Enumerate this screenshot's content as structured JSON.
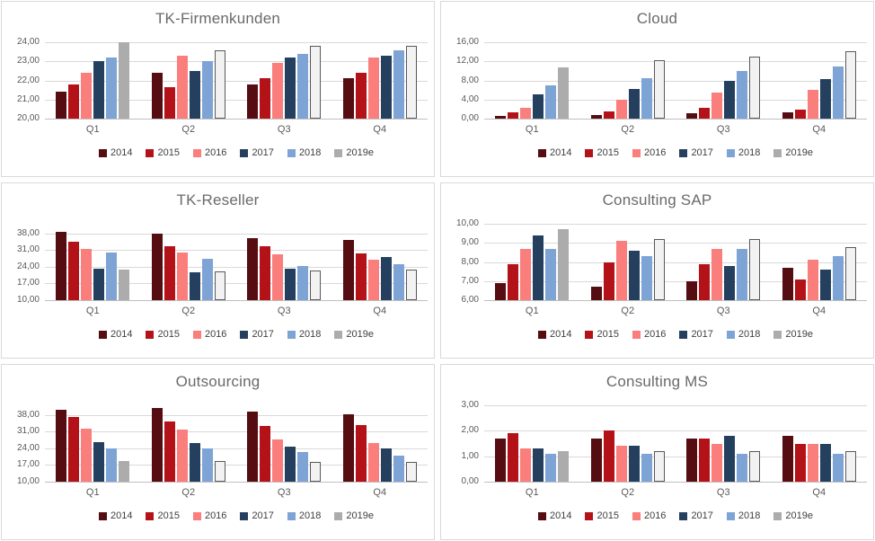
{
  "legend": {
    "entries": [
      "2014",
      "2015",
      "2016",
      "2017",
      "2018",
      "2019e"
    ]
  },
  "colors": {
    "series": {
      "2014": "#560d12",
      "2015": "#b21218",
      "2016": "#f97e7c",
      "2017": "#25405f",
      "2018": "#7ea3d5",
      "2019e": "#acacac"
    },
    "estimate_fill": "#f2f2f2",
    "estimate_border": "#595959",
    "gridline": "#d9d9d9",
    "axis_line": "#bfbfbf",
    "title_text": "#6a6a6a",
    "tick_text": "#595959",
    "legend_text": "#404040",
    "panel_border": "#d9d9d9"
  },
  "estimate_series": "2019e",
  "estimate_solid_categories": [
    "Q1"
  ],
  "chart_data": [
    {
      "type": "bar",
      "title": "TK-Firmenkunden",
      "categories": [
        "Q1",
        "Q2",
        "Q3",
        "Q4"
      ],
      "series": [
        {
          "name": "2014",
          "values": [
            21.4,
            22.4,
            21.8,
            22.1
          ]
        },
        {
          "name": "2015",
          "values": [
            21.8,
            21.65,
            22.1,
            22.4
          ]
        },
        {
          "name": "2016",
          "values": [
            22.4,
            23.3,
            22.9,
            23.2
          ]
        },
        {
          "name": "2017",
          "values": [
            23.0,
            22.5,
            23.2,
            23.3
          ]
        },
        {
          "name": "2018",
          "values": [
            23.2,
            23.0,
            23.4,
            23.6
          ]
        },
        {
          "name": "2019e",
          "values": [
            24.0,
            23.6,
            23.8,
            23.8
          ]
        }
      ],
      "ylim": [
        20,
        24
      ],
      "plot_max": 24,
      "yticks": [
        24,
        23,
        22,
        21,
        20
      ],
      "ytick_labels": [
        "24,00",
        "23,00",
        "22,00",
        "21,00",
        "20,00"
      ],
      "grid": true,
      "legend_position": "bottom"
    },
    {
      "type": "bar",
      "title": "Cloud",
      "categories": [
        "Q1",
        "Q2",
        "Q3",
        "Q4"
      ],
      "series": [
        {
          "name": "2014",
          "values": [
            0.6,
            0.7,
            1.2,
            1.4
          ]
        },
        {
          "name": "2015",
          "values": [
            1.3,
            1.6,
            2.3,
            1.9
          ]
        },
        {
          "name": "2016",
          "values": [
            2.2,
            3.9,
            5.5,
            6.1
          ]
        },
        {
          "name": "2017",
          "values": [
            5.1,
            6.2,
            8.0,
            8.2
          ]
        },
        {
          "name": "2018",
          "values": [
            7.0,
            8.5,
            10.0,
            10.9
          ]
        },
        {
          "name": "2019e",
          "values": [
            10.8,
            12.2,
            13.0,
            14.1
          ]
        }
      ],
      "ylim": [
        0,
        16
      ],
      "plot_max": 16,
      "yticks": [
        16,
        12,
        8,
        4,
        0
      ],
      "ytick_labels": [
        "16,00",
        "12,00",
        "8,00",
        "4,00",
        "0,00"
      ],
      "grid": true,
      "legend_position": "bottom"
    },
    {
      "type": "bar",
      "title": "TK-Reseller",
      "categories": [
        "Q1",
        "Q2",
        "Q3",
        "Q4"
      ],
      "series": [
        {
          "name": "2014",
          "values": [
            38.8,
            37.8,
            35.9,
            35.1
          ]
        },
        {
          "name": "2015",
          "values": [
            34.6,
            32.6,
            32.6,
            29.5
          ]
        },
        {
          "name": "2016",
          "values": [
            31.5,
            29.8,
            29.4,
            26.8
          ]
        },
        {
          "name": "2017",
          "values": [
            23.2,
            21.7,
            23.2,
            28.1
          ]
        },
        {
          "name": "2018",
          "values": [
            30.1,
            27.3,
            24.5,
            25.0
          ]
        },
        {
          "name": "2019e",
          "values": [
            22.8,
            21.9,
            22.3,
            23.0
          ]
        }
      ],
      "ylim": [
        10,
        38
      ],
      "plot_max": 42,
      "yticks": [
        38,
        31,
        24,
        17,
        10
      ],
      "ytick_labels": [
        "38,00",
        "31,00",
        "24,00",
        "17,00",
        "10,00"
      ],
      "grid": true,
      "legend_position": "bottom"
    },
    {
      "type": "bar",
      "title": "Consulting SAP",
      "categories": [
        "Q1",
        "Q2",
        "Q3",
        "Q4"
      ],
      "series": [
        {
          "name": "2014",
          "values": [
            6.9,
            6.7,
            7.0,
            7.7
          ]
        },
        {
          "name": "2015",
          "values": [
            7.9,
            8.0,
            7.9,
            7.1
          ]
        },
        {
          "name": "2016",
          "values": [
            8.7,
            9.1,
            8.7,
            8.1
          ]
        },
        {
          "name": "2017",
          "values": [
            9.4,
            8.6,
            7.8,
            7.6
          ]
        },
        {
          "name": "2018",
          "values": [
            8.7,
            8.3,
            8.7,
            8.3
          ]
        },
        {
          "name": "2019e",
          "values": [
            9.7,
            9.2,
            9.2,
            8.8
          ]
        }
      ],
      "ylim": [
        6,
        10
      ],
      "plot_max": 10,
      "yticks": [
        10,
        9,
        8,
        7,
        6
      ],
      "ytick_labels": [
        "10,00",
        "9,00",
        "8,00",
        "7,00",
        "6,00"
      ],
      "grid": true,
      "legend_position": "bottom"
    },
    {
      "type": "bar",
      "title": "Outsourcing",
      "categories": [
        "Q1",
        "Q2",
        "Q3",
        "Q4"
      ],
      "series": [
        {
          "name": "2014",
          "values": [
            40.0,
            41.0,
            39.3,
            38.2
          ]
        },
        {
          "name": "2015",
          "values": [
            37.3,
            35.3,
            33.3,
            33.9
          ]
        },
        {
          "name": "2016",
          "values": [
            32.4,
            31.9,
            27.6,
            26.2
          ]
        },
        {
          "name": "2017",
          "values": [
            26.7,
            26.3,
            24.8,
            24.1
          ]
        },
        {
          "name": "2018",
          "values": [
            23.9,
            23.9,
            22.3,
            21.0
          ]
        },
        {
          "name": "2019e",
          "values": [
            18.7,
            18.5,
            18.3,
            18.2
          ]
        }
      ],
      "ylim": [
        10,
        38
      ],
      "plot_max": 42,
      "yticks": [
        38,
        31,
        24,
        17,
        10
      ],
      "ytick_labels": [
        "38,00",
        "31,00",
        "24,00",
        "17,00",
        "10,00"
      ],
      "grid": true,
      "legend_position": "bottom"
    },
    {
      "type": "bar",
      "title": "Consulting MS",
      "categories": [
        "Q1",
        "Q2",
        "Q3",
        "Q4"
      ],
      "series": [
        {
          "name": "2014",
          "values": [
            1.7,
            1.7,
            1.7,
            1.8
          ]
        },
        {
          "name": "2015",
          "values": [
            1.9,
            2.0,
            1.7,
            1.5
          ]
        },
        {
          "name": "2016",
          "values": [
            1.3,
            1.4,
            1.5,
            1.5
          ]
        },
        {
          "name": "2017",
          "values": [
            1.3,
            1.4,
            1.8,
            1.5
          ]
        },
        {
          "name": "2018",
          "values": [
            1.1,
            1.1,
            1.1,
            1.1
          ]
        },
        {
          "name": "2019e",
          "values": [
            1.2,
            1.2,
            1.2,
            1.2
          ]
        }
      ],
      "ylim": [
        0,
        3
      ],
      "plot_max": 3,
      "yticks": [
        3,
        2,
        1,
        0
      ],
      "ytick_labels": [
        "3,00",
        "2,00",
        "1,00",
        "0,00"
      ],
      "grid": true,
      "legend_position": "bottom"
    }
  ]
}
